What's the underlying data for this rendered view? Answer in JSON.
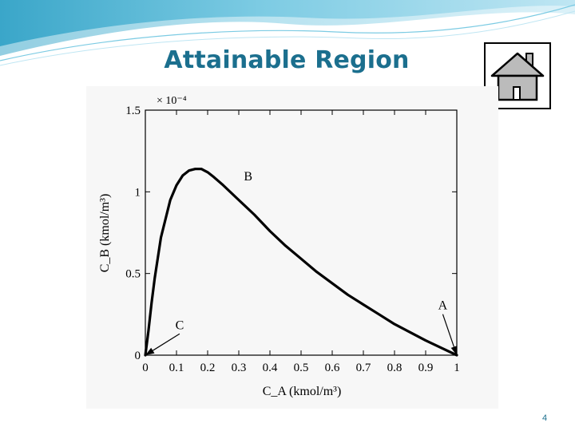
{
  "slide": {
    "title": "Attainable Region",
    "page_number": "4"
  },
  "home_button": {
    "icon": "home-icon"
  },
  "colors": {
    "title": "#1b6f8e",
    "banner_light": "#bfe6f3",
    "banner_mid": "#7ccbe3",
    "banner_dark": "#3aa6c9",
    "curve": "#000000"
  },
  "chart_data": {
    "type": "line",
    "xlabel": "C_A (kmol/m³)",
    "ylabel": "C_B (kmol/m³)",
    "y_multiplier": "× 10⁻⁴",
    "xlim": [
      0,
      1
    ],
    "ylim": [
      0,
      1.5
    ],
    "x_ticks": [
      0,
      0.1,
      0.2,
      0.3,
      0.4,
      0.5,
      0.6,
      0.7,
      0.8,
      0.9,
      1
    ],
    "x_tick_labels": [
      "0",
      "0.1",
      "0.2",
      "0.3",
      "0.4",
      "0.5",
      "0.6",
      "0.7",
      "0.8",
      "0.9",
      "1"
    ],
    "y_ticks": [
      0,
      0.5,
      1,
      1.5
    ],
    "y_tick_labels": [
      "0",
      "0.5",
      "1",
      "1.5"
    ],
    "grid": false,
    "series": [
      {
        "x": [
          0,
          0.01,
          0.02,
          0.03,
          0.05,
          0.08,
          0.1,
          0.12,
          0.14,
          0.16,
          0.18,
          0.2,
          0.22,
          0.25,
          0.3,
          0.35,
          0.4,
          0.45,
          0.5,
          0.55,
          0.6,
          0.65,
          0.7,
          0.75,
          0.8,
          0.85,
          0.9,
          0.95,
          1.0
        ],
        "y": [
          0,
          0.15,
          0.32,
          0.47,
          0.72,
          0.95,
          1.04,
          1.1,
          1.13,
          1.14,
          1.14,
          1.12,
          1.09,
          1.04,
          0.95,
          0.86,
          0.76,
          0.67,
          0.59,
          0.51,
          0.44,
          0.37,
          0.31,
          0.25,
          0.19,
          0.14,
          0.09,
          0.045,
          0
        ]
      }
    ],
    "annotations": [
      {
        "label": "A",
        "x": 1.0,
        "y": 0.0,
        "text_x": 0.955,
        "text_y": 0.28,
        "arrow": true
      },
      {
        "label": "B",
        "x": 0.32,
        "y": 0.98,
        "text_x": 0.33,
        "text_y": 1.07,
        "arrow": false
      },
      {
        "label": "C",
        "x": 0.0,
        "y": 0.0,
        "text_x": 0.11,
        "text_y": 0.16,
        "arrow": true
      }
    ]
  }
}
